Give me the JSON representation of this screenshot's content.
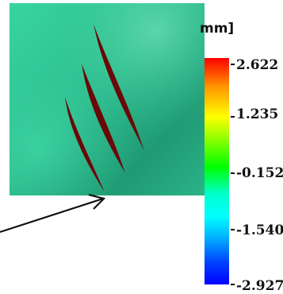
{
  "legend": {
    "unit_label": "mm]",
    "ticks": [
      "2.622",
      "1.235",
      "-0.1527",
      "-1.540",
      "-2.927"
    ],
    "gradient": [
      "#ff0000",
      "#ff9900",
      "#ffff00",
      "#00ff00",
      "#00ffcc",
      "#00ffff",
      "#0000ff"
    ]
  },
  "surface": {
    "base_color": "#27a97f",
    "light_color": "#3fd9a6",
    "crack_color": "#6b0808",
    "crack_count": 3
  }
}
